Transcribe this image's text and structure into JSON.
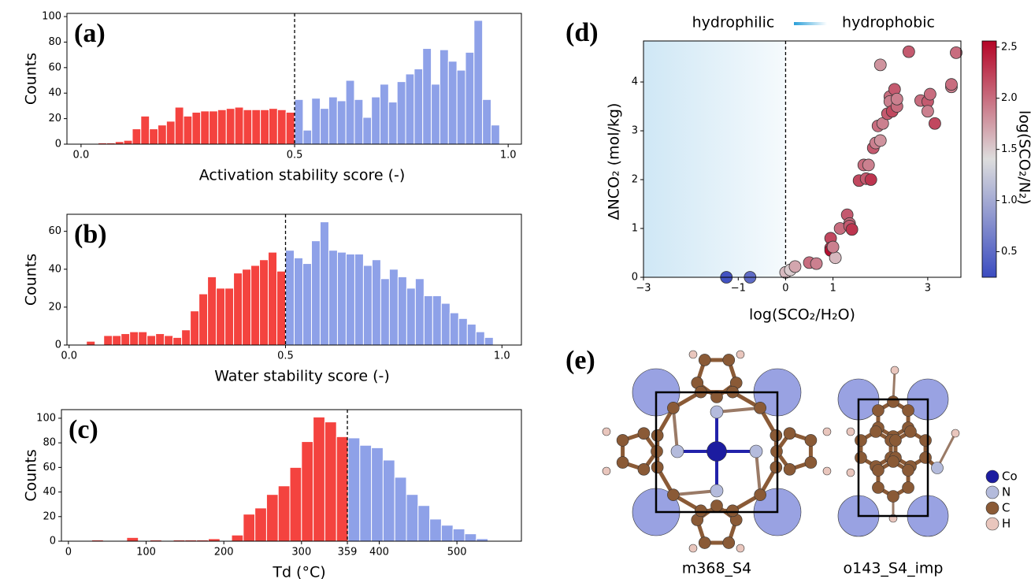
{
  "chart_data": [
    {
      "type": "histogram",
      "panel_label": "(a)",
      "xlabel": "Activation stability score (-)",
      "ylabel": "Counts",
      "bins": [
        0.04,
        0.06,
        0.08,
        0.1,
        0.12,
        0.14,
        0.16,
        0.18,
        0.2,
        0.22,
        0.24,
        0.26,
        0.28,
        0.3,
        0.32,
        0.34,
        0.36,
        0.38,
        0.4,
        0.42,
        0.44,
        0.46,
        0.48,
        0.5,
        0.52,
        0.54,
        0.56,
        0.58,
        0.6,
        0.62,
        0.64,
        0.66,
        0.68,
        0.7,
        0.72,
        0.74,
        0.76,
        0.78,
        0.8,
        0.82,
        0.84,
        0.86,
        0.88,
        0.9,
        0.92,
        0.94,
        0.96,
        0.98
      ],
      "counts": [
        1,
        1,
        2,
        3,
        12,
        22,
        12,
        15,
        18,
        29,
        22,
        25,
        26,
        26,
        27,
        28,
        29,
        27,
        27,
        27,
        28,
        27,
        25,
        35,
        11,
        36,
        28,
        37,
        34,
        50,
        35,
        21,
        37,
        47,
        33,
        49,
        55,
        59,
        75,
        47,
        74,
        65,
        58,
        72,
        97,
        35,
        15
      ],
      "threshold": 0.5,
      "color_below": "#f4433f",
      "color_above": "#8ea1e8",
      "xlim": [
        -0.033,
        1.031
      ],
      "xticks": [
        {
          "value": 0,
          "label": "0.0"
        },
        {
          "value": 0.5,
          "label": "0.5"
        },
        {
          "value": 1,
          "label": "1.0"
        }
      ],
      "ylim": [
        0,
        102.5
      ],
      "yticks": [
        0,
        20,
        40,
        60,
        80,
        100
      ]
    },
    {
      "type": "histogram",
      "panel_label": "(b)",
      "xlabel": "Water stability score (-)",
      "ylabel": "Counts",
      "bins": [
        0.04,
        0.06,
        0.08,
        0.1,
        0.12,
        0.14,
        0.16,
        0.18,
        0.2,
        0.22,
        0.24,
        0.26,
        0.28,
        0.3,
        0.32,
        0.34,
        0.36,
        0.38,
        0.4,
        0.42,
        0.44,
        0.46,
        0.48,
        0.5,
        0.52,
        0.54,
        0.56,
        0.58,
        0.6,
        0.62,
        0.64,
        0.66,
        0.68,
        0.7,
        0.72,
        0.74,
        0.76,
        0.78,
        0.8,
        0.82,
        0.84,
        0.86,
        0.88,
        0.9,
        0.92,
        0.94,
        0.96,
        0.98
      ],
      "counts": [
        2,
        0,
        5,
        5,
        6,
        7,
        7,
        5,
        6,
        5,
        4,
        8,
        18,
        27,
        36,
        30,
        30,
        38,
        40,
        42,
        45,
        49,
        39,
        50,
        46,
        43,
        55,
        65,
        50,
        49,
        48,
        48,
        42,
        45,
        35,
        40,
        36,
        30,
        35,
        26,
        26,
        22,
        17,
        14,
        11,
        7,
        4
      ],
      "threshold": 0.5,
      "color_below": "#f4433f",
      "color_above": "#8ea1e8",
      "xlim": [
        -0.005,
        1.045
      ],
      "xticks": [
        {
          "value": 0,
          "label": "0.0"
        },
        {
          "value": 0.5,
          "label": "0.5"
        },
        {
          "value": 1,
          "label": "1.0"
        }
      ],
      "ylim": [
        0,
        69
      ],
      "yticks": [
        0,
        20,
        40,
        60
      ]
    },
    {
      "type": "histogram",
      "panel_label": "(c)",
      "xlabel": "Td (°C)",
      "ylabel": "Counts",
      "bins": [
        0,
        15,
        30,
        45,
        60,
        75,
        90,
        105,
        120,
        135,
        150,
        165,
        180,
        195,
        210,
        225,
        240,
        255,
        270,
        285,
        300,
        315,
        330,
        345,
        360,
        375,
        390,
        405,
        420,
        435,
        450,
        465,
        480,
        495,
        510,
        525,
        540
      ],
      "counts": [
        0,
        0,
        1,
        0,
        0,
        3,
        0,
        1,
        0,
        1,
        1,
        1,
        2,
        0,
        5,
        22,
        27,
        38,
        45,
        60,
        81,
        101,
        97,
        85,
        84,
        78,
        76,
        66,
        52,
        38,
        29,
        18,
        13,
        10,
        6,
        2
      ],
      "threshold": 359,
      "color_below": "#f4433f",
      "color_above": "#8ea1e8",
      "xlim": [
        -9,
        583
      ],
      "xticks": [
        0,
        100,
        200,
        300,
        359,
        400,
        500
      ],
      "ylim": [
        0,
        107
      ],
      "yticks": [
        0,
        20,
        40,
        60,
        80,
        100
      ]
    },
    {
      "type": "scatter",
      "panel_label": "(d)",
      "xlabel": "log(SCO₂/H₂O)",
      "ylabel": "ΔNCO₂ (mol/kg)",
      "left_label": "hydrophilic",
      "right_label": "hydrophobic",
      "colorbar_label": "log(SCO₂/N₂)",
      "threshold": 0,
      "shade_color": "#cfe7f5",
      "x": [
        -1.25,
        -0.75,
        0,
        0.1,
        0.2,
        0.5,
        0.65,
        0.95,
        0.95,
        0.95,
        1.05,
        1.0,
        1.15,
        1.3,
        1.35,
        1.35,
        1.4,
        1.55,
        1.65,
        1.75,
        1.7,
        1.8,
        1.85,
        1.9,
        1.95,
        2.0,
        2.05,
        2.0,
        2.15,
        2.2,
        2.2,
        2.25,
        2.3,
        2.35,
        2.35,
        2.6,
        2.85,
        3.0,
        3.05,
        3.0,
        3.15,
        3.5,
        3.5,
        3.6
      ],
      "y": [
        0,
        0,
        0.1,
        0.15,
        0.22,
        0.3,
        0.28,
        0.8,
        0.6,
        0.55,
        0.4,
        0.62,
        1.0,
        1.28,
        1.1,
        1.05,
        0.98,
        1.98,
        2.3,
        2.3,
        2.02,
        2.0,
        2.65,
        2.75,
        3.1,
        2.8,
        3.15,
        4.35,
        3.35,
        3.7,
        3.6,
        3.4,
        3.85,
        3.5,
        3.65,
        4.62,
        3.62,
        3.6,
        3.75,
        3.4,
        3.15,
        3.9,
        3.95,
        4.6
      ],
      "c": [
        0.3,
        0.5,
        1.6,
        1.5,
        1.7,
        2.0,
        1.9,
        2.2,
        2.3,
        2.5,
        1.6,
        1.9,
        2.0,
        2.1,
        2.0,
        2.1,
        2.3,
        2.2,
        2.0,
        1.9,
        2.1,
        2.3,
        2.1,
        1.9,
        2.0,
        1.8,
        1.9,
        1.8,
        2.1,
        2.0,
        1.9,
        2.2,
        2.1,
        2.0,
        1.9,
        2.1,
        2.0,
        2.1,
        2.0,
        1.9,
        2.2,
        1.9,
        2.0,
        2.0
      ],
      "colormap": [
        "#3b4cc0",
        "#dddddd",
        "#b40426"
      ],
      "clim": [
        0.25,
        2.56
      ],
      "cticks": [
        0.5,
        {
          "value": 1,
          "label": "1.0"
        },
        1.5,
        {
          "value": 2,
          "label": "2.0"
        },
        2.5
      ],
      "xlim": [
        -3,
        3.7
      ],
      "xticks": [
        {
          "value": -3,
          "label": "−3"
        },
        {
          "value": -1,
          "label": "−1"
        },
        0,
        1,
        3
      ],
      "ylim": [
        0,
        4.84
      ],
      "yticks": [
        0,
        1,
        2,
        3,
        4
      ]
    }
  ],
  "panel_e": {
    "label": "(e)",
    "structures": [
      "m368_S4",
      "o143_S4_imp"
    ],
    "legend": [
      {
        "name": "Co",
        "color": "#1c1ca0"
      },
      {
        "name": "N",
        "color": "#b4bbdc"
      },
      {
        "name": "C",
        "color": "#8a5a36"
      },
      {
        "name": "H",
        "color": "#e9c6bd"
      }
    ]
  }
}
